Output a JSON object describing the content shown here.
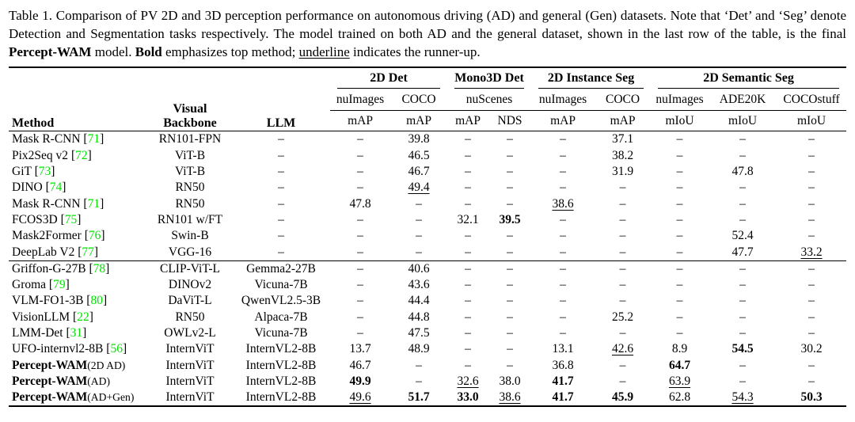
{
  "caption": {
    "segments": [
      {
        "t": "Table 1. Comparison of PV 2D and 3D perception performance on autonomous driving (AD) and general (Gen) datasets. Note that ‘Det’ and ‘Seg’ denote Detection and Segmentation tasks respectively. The model trained on both AD and the general dataset, shown in the last row of the table, is the final ",
        "s": "n"
      },
      {
        "t": "Percept-WAM",
        "s": "b"
      },
      {
        "t": " model. ",
        "s": "n"
      },
      {
        "t": "Bold",
        "s": "b"
      },
      {
        "t": " emphasizes top method; ",
        "s": "n"
      },
      {
        "t": "underline",
        "s": "u"
      },
      {
        "t": " indicates the runner-up.",
        "s": "n"
      }
    ]
  },
  "colors": {
    "citation_green": "#00e400",
    "text": "#000000",
    "background": "#ffffff"
  },
  "table": {
    "value_format": "prefix * = bold (top method), prefix _ = underlined (runner-up), – = not reported",
    "headers": {
      "method": "Method",
      "visual_backbone": "Visual Backbone",
      "llm": "LLM",
      "groups": [
        {
          "label": "2D Det",
          "span": 2
        },
        {
          "label": "Mono3D Det",
          "span": 2
        },
        {
          "label": "2D Instance Seg",
          "span": 2
        },
        {
          "label": "2D Semantic Seg",
          "span": 3
        }
      ],
      "datasets": [
        {
          "label": "nuImages",
          "span": 1
        },
        {
          "label": "COCO",
          "span": 1
        },
        {
          "label": "nuScenes",
          "span": 2
        },
        {
          "label": "nuImages",
          "span": 1
        },
        {
          "label": "COCO",
          "span": 1
        },
        {
          "label": "nuImages",
          "span": 1
        },
        {
          "label": "ADE20K",
          "span": 1
        },
        {
          "label": "COCOstuff",
          "span": 1
        }
      ],
      "metrics": [
        "mAP",
        "mAP",
        "mAP",
        "NDS",
        "mAP",
        "mAP",
        "mIoU",
        "mIoU",
        "mIoU"
      ]
    },
    "rows": [
      {
        "section": 1,
        "name": "Mask R-CNN",
        "ref": "71",
        "backbone": "RN101-FPN",
        "llm": "–",
        "values": [
          "–",
          "39.8",
          "–",
          "–",
          "–",
          "37.1",
          "–",
          "–",
          "–"
        ]
      },
      {
        "section": 1,
        "name": "Pix2Seq v2",
        "ref": "72",
        "backbone": "ViT-B",
        "llm": "–",
        "values": [
          "–",
          "46.5",
          "–",
          "–",
          "–",
          "38.2",
          "–",
          "–",
          "–"
        ]
      },
      {
        "section": 1,
        "name": "GiT",
        "ref": "73",
        "backbone": "ViT-B",
        "llm": "–",
        "values": [
          "–",
          "46.7",
          "–",
          "–",
          "–",
          "31.9",
          "–",
          "47.8",
          "–"
        ]
      },
      {
        "section": 1,
        "name": "DINO",
        "ref": "74",
        "backbone": "RN50",
        "llm": "–",
        "values": [
          "–",
          "_49.4",
          "–",
          "–",
          "–",
          "–",
          "–",
          "–",
          "–"
        ]
      },
      {
        "section": 1,
        "name": "Mask R-CNN",
        "ref": "71",
        "backbone": "RN50",
        "llm": "–",
        "values": [
          "47.8",
          "–",
          "–",
          "–",
          "_38.6",
          "–",
          "–",
          "–",
          "–"
        ]
      },
      {
        "section": 1,
        "name": "FCOS3D",
        "ref": "75",
        "backbone": "RN101 w/FT",
        "llm": "–",
        "values": [
          "–",
          "–",
          "32.1",
          "*39.5",
          "–",
          "–",
          "–",
          "–",
          "–"
        ]
      },
      {
        "section": 1,
        "name": "Mask2Former",
        "ref": "76",
        "backbone": "Swin-B",
        "llm": "–",
        "values": [
          "–",
          "–",
          "–",
          "–",
          "–",
          "–",
          "–",
          "52.4",
          "–"
        ]
      },
      {
        "section": 1,
        "name": "DeepLab V2",
        "ref": "77",
        "backbone": "VGG-16",
        "llm": "–",
        "values": [
          "–",
          "–",
          "–",
          "–",
          "–",
          "–",
          "–",
          "47.7",
          "_33.2"
        ]
      },
      {
        "section": 2,
        "name": "Griffon-G-27B",
        "ref": "78",
        "backbone": "CLIP-ViT-L",
        "llm": "Gemma2-27B",
        "values": [
          "–",
          "40.6",
          "–",
          "–",
          "–",
          "–",
          "–",
          "–",
          "–"
        ]
      },
      {
        "section": 2,
        "name": "Groma",
        "ref": "79",
        "backbone": "DINOv2",
        "llm": "Vicuna-7B",
        "values": [
          "–",
          "43.6",
          "–",
          "–",
          "–",
          "–",
          "–",
          "–",
          "–"
        ]
      },
      {
        "section": 2,
        "name": "VLM-FO1-3B",
        "ref": "80",
        "backbone": "DaViT-L",
        "llm": "QwenVL2.5-3B",
        "values": [
          "–",
          "44.4",
          "–",
          "–",
          "–",
          "–",
          "–",
          "–",
          "–"
        ]
      },
      {
        "section": 2,
        "name": "VisionLLM",
        "ref": "22",
        "backbone": "RN50",
        "llm": "Alpaca-7B",
        "values": [
          "–",
          "44.8",
          "–",
          "–",
          "–",
          "25.2",
          "–",
          "–",
          "–"
        ]
      },
      {
        "section": 2,
        "name": "LMM-Det",
        "ref": "31",
        "backbone": "OWLv2-L",
        "llm": "Vicuna-7B",
        "values": [
          "–",
          "47.5",
          "–",
          "–",
          "–",
          "–",
          "–",
          "–",
          "–"
        ]
      },
      {
        "section": 2,
        "name": "UFO-internvl2-8B",
        "ref": "56",
        "backbone": "InternViT",
        "llm": "InternVL2-8B",
        "values": [
          "13.7",
          "48.9",
          "–",
          "–",
          "13.1",
          "_42.6",
          "8.9",
          "*54.5",
          "30.2"
        ]
      },
      {
        "section": 2,
        "name": "Percept-WAM",
        "bold": true,
        "suffix": "(2D AD)",
        "backbone": "InternViT",
        "llm": "InternVL2-8B",
        "values": [
          "46.7",
          "–",
          "–",
          "–",
          "36.8",
          "–",
          "*64.7",
          "–",
          "–"
        ]
      },
      {
        "section": 2,
        "name": "Percept-WAM",
        "bold": true,
        "suffix": "(AD)",
        "backbone": "InternViT",
        "llm": "InternVL2-8B",
        "values": [
          "*49.9",
          "–",
          "_32.6",
          "38.0",
          "*41.7",
          "–",
          "_63.9",
          "–",
          "–"
        ]
      },
      {
        "section": 2,
        "name": "Percept-WAM",
        "bold": true,
        "suffix": "(AD+Gen)",
        "backbone": "InternViT",
        "llm": "InternVL2-8B",
        "values": [
          "_49.6",
          "*51.7",
          "*33.0",
          "_38.6",
          "*41.7",
          "*45.9",
          "62.8",
          "_54.3",
          "*50.3"
        ]
      }
    ]
  }
}
